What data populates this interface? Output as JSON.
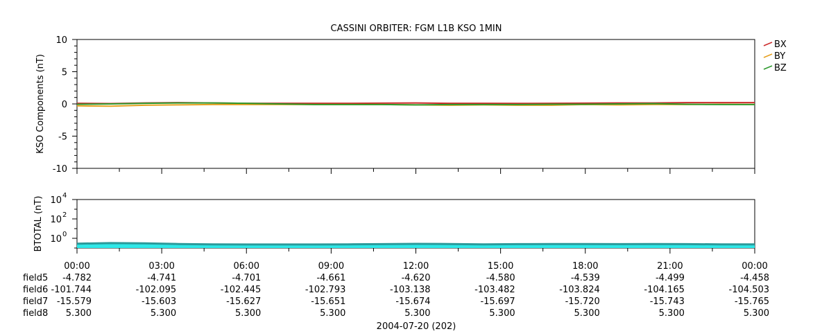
{
  "chart_data": [
    {
      "type": "line",
      "title": "CASSINI ORBITER: FGM L1B KSO 1MIN",
      "ylabel": "KSO Components (nT)",
      "ylim": [
        -10,
        10
      ],
      "yticks": [
        10,
        5,
        0,
        -5,
        -10
      ],
      "grid": false,
      "legend_placement": "right",
      "series": [
        {
          "name": "BX",
          "color": "#cc2b2b",
          "values": [
            0.1,
            0.05,
            0.15,
            0.2,
            0.15,
            0.1,
            0.1,
            0.1,
            0.1,
            0.12,
            0.15,
            0.1,
            0.1,
            0.08,
            0.1,
            0.12,
            0.15,
            0.15,
            0.2,
            0.2,
            0.2
          ]
        },
        {
          "name": "BY",
          "color": "#e6a020",
          "values": [
            -0.3,
            -0.35,
            -0.2,
            -0.15,
            -0.1,
            -0.1,
            -0.1,
            -0.1,
            -0.1,
            -0.1,
            -0.15,
            -0.2,
            -0.15,
            -0.2,
            -0.2,
            -0.1,
            -0.15,
            -0.1,
            -0.1,
            -0.05,
            -0.1
          ]
        },
        {
          "name": "BZ",
          "color": "#2e9a2e",
          "values": [
            -0.05,
            0.0,
            0.1,
            0.15,
            0.15,
            0.1,
            0.0,
            -0.1,
            -0.1,
            -0.1,
            -0.15,
            -0.1,
            -0.1,
            -0.1,
            -0.05,
            -0.05,
            0.0,
            0.05,
            -0.05,
            -0.1,
            -0.1
          ]
        }
      ]
    },
    {
      "type": "area",
      "ylabel": "BTOTAL (nT)",
      "yscale": "log",
      "ylim": [
        0.1,
        10000
      ],
      "ytick_base": "10",
      "ytick_exponents": [
        "4",
        "2",
        "0"
      ],
      "grid": false,
      "series": [
        {
          "color": "#2ee8e8",
          "edge_color": "#2a9a9a",
          "values": [
            0.28,
            0.32,
            0.3,
            0.26,
            0.24,
            0.23,
            0.23,
            0.23,
            0.24,
            0.25,
            0.27,
            0.26,
            0.24,
            0.25,
            0.26,
            0.26,
            0.25,
            0.26,
            0.25,
            0.24,
            0.24
          ]
        }
      ]
    }
  ],
  "x_axis": {
    "tick_labels": [
      "00:00",
      "03:00",
      "06:00",
      "09:00",
      "12:00",
      "15:00",
      "18:00",
      "21:00",
      "00:00"
    ],
    "date_label": "2004-07-20 (202)",
    "extra_rows": [
      {
        "label": "field5",
        "values": [
          "-4.782",
          "-4.741",
          "-4.701",
          "-4.661",
          "-4.620",
          "-4.580",
          "-4.539",
          "-4.499",
          "-4.458"
        ]
      },
      {
        "label": "field6",
        "values": [
          "-101.744",
          "-102.095",
          "-102.445",
          "-102.793",
          "-103.138",
          "-103.482",
          "-103.824",
          "-104.165",
          "-104.503"
        ]
      },
      {
        "label": "field7",
        "values": [
          "-15.579",
          "-15.603",
          "-15.627",
          "-15.651",
          "-15.674",
          "-15.697",
          "-15.720",
          "-15.743",
          "-15.765"
        ]
      },
      {
        "label": "field8",
        "values": [
          "5.300",
          "5.300",
          "5.300",
          "5.300",
          "5.300",
          "5.300",
          "5.300",
          "5.300",
          "5.300"
        ]
      }
    ]
  }
}
